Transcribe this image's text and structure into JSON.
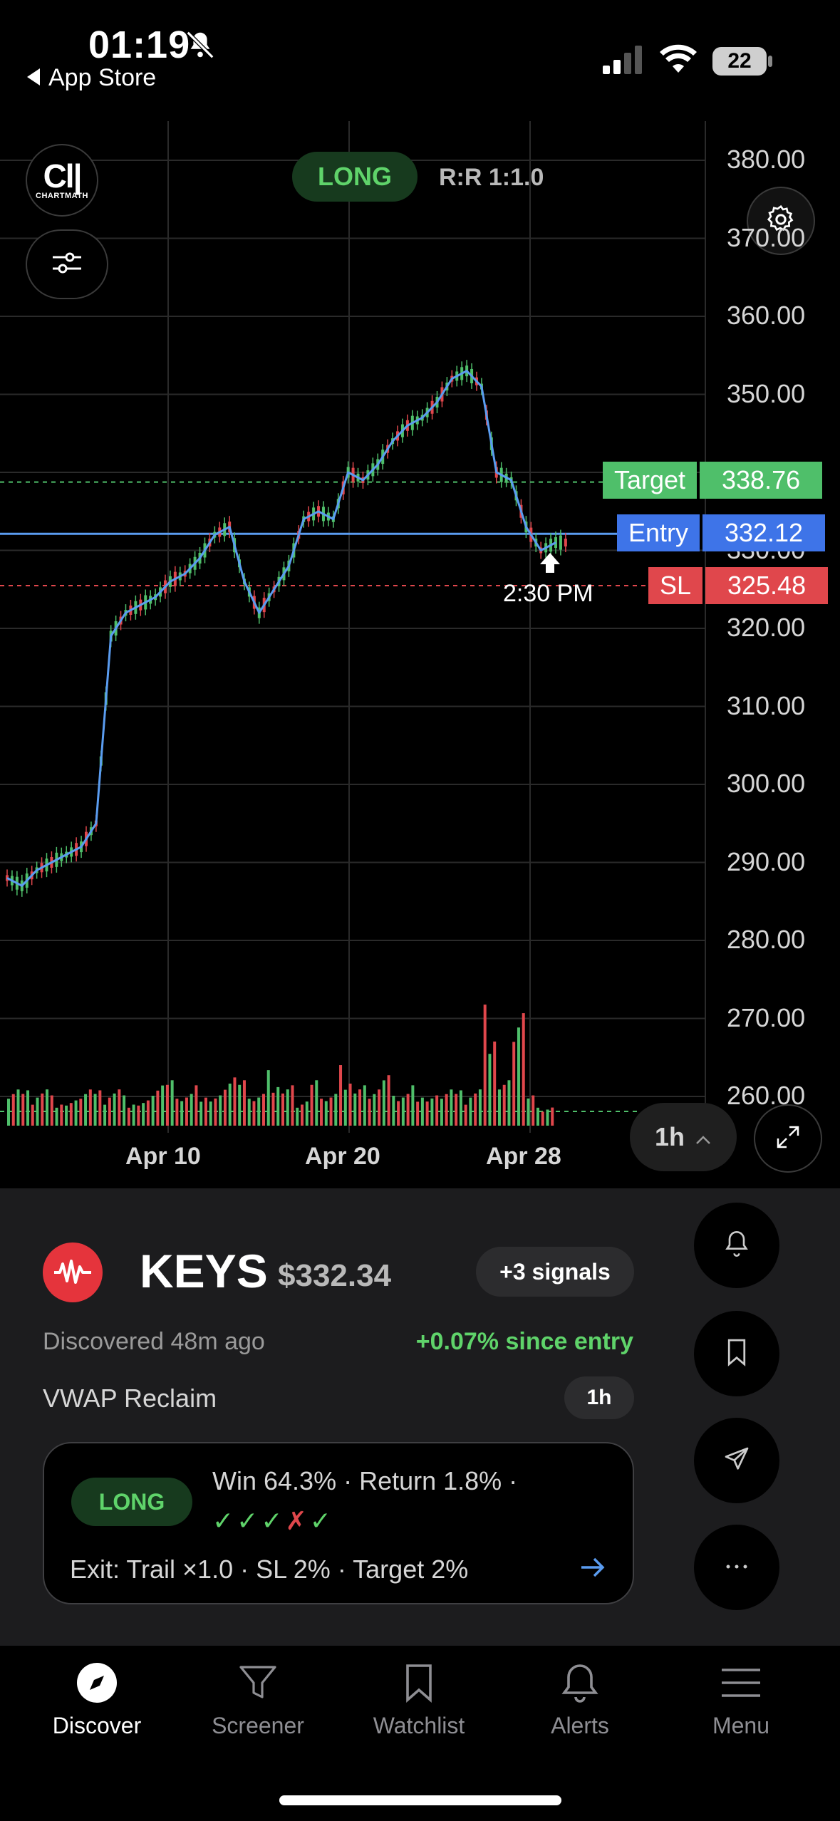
{
  "status_bar": {
    "time": "01:19",
    "back_label": "App Store",
    "battery": "22"
  },
  "chart": {
    "direction_badge": "LONG",
    "risk_reward": "R:R 1:1.0",
    "logo_text": "Cl|",
    "logo_subtext": "CHARTMATH",
    "timeframe": "1h",
    "entry_marker_time": "2:30 PM",
    "colors": {
      "up": "#4fbf6a",
      "down": "#e0474c",
      "line": "#5a9cf0",
      "target": "#4fbf6a",
      "entry": "#3e74e8",
      "stop": "#e0474c"
    }
  },
  "chart_data": {
    "type": "candlestick",
    "title": "",
    "y_ticks": [
      "380.00",
      "370.00",
      "360.00",
      "350.00",
      "340.00",
      "330.00",
      "320.00",
      "310.00",
      "300.00",
      "290.00",
      "280.00",
      "270.00",
      "260.00"
    ],
    "ylim": [
      258,
      382
    ],
    "x_ticks": [
      "Apr 10",
      "Apr 20",
      "Apr 28"
    ],
    "levels": [
      {
        "name": "Target",
        "value": "338.76"
      },
      {
        "name": "Entry",
        "value": "332.12"
      },
      {
        "name": "SL",
        "value": "325.48"
      }
    ],
    "price_path": [
      288,
      287,
      289,
      290,
      291,
      292,
      295,
      319,
      322,
      323,
      324,
      326,
      327,
      329,
      332,
      333,
      326,
      322,
      325,
      328,
      334,
      335,
      334,
      340,
      339,
      341,
      344,
      346,
      347,
      349,
      352,
      353,
      351,
      340,
      339,
      333,
      330,
      331
    ],
    "volume": [
      0.9,
      0.7,
      0.8,
      0.6,
      0.5,
      0.9,
      0.7,
      0.8,
      0.6,
      0.5,
      1.0,
      0.9,
      0.7,
      0.8,
      0.6,
      1.2,
      0.9,
      0.7,
      1.1,
      0.8,
      0.6,
      0.9,
      0.7,
      1.2,
      0.8,
      0.9,
      1.0,
      0.7,
      0.8,
      0.6,
      0.9,
      0.7,
      0.8,
      2.4,
      0.9,
      2.8,
      0.6,
      0.4
    ]
  },
  "stock": {
    "ticker": "KEYS",
    "price": "$332.34",
    "signals": "+3 signals",
    "discovered": "Discovered 48m ago",
    "since_entry": "+0.07% since entry",
    "strategy": "VWAP Reclaim",
    "strategy_timeframe": "1h"
  },
  "card": {
    "direction": "LONG",
    "stats": "Win 64.3%  ·  Return 1.8%  ·",
    "results": [
      "win",
      "win",
      "win",
      "loss",
      "win"
    ],
    "exit": "Exit: Trail ×1.0 · SL 2% · Target 2%"
  },
  "tabs": [
    {
      "label": "Discover",
      "icon": "compass-icon",
      "active": true
    },
    {
      "label": "Screener",
      "icon": "filter-icon"
    },
    {
      "label": "Watchlist",
      "icon": "bookmark-icon"
    },
    {
      "label": "Alerts",
      "icon": "bell-icon"
    },
    {
      "label": "Menu",
      "icon": "menu-icon"
    }
  ]
}
